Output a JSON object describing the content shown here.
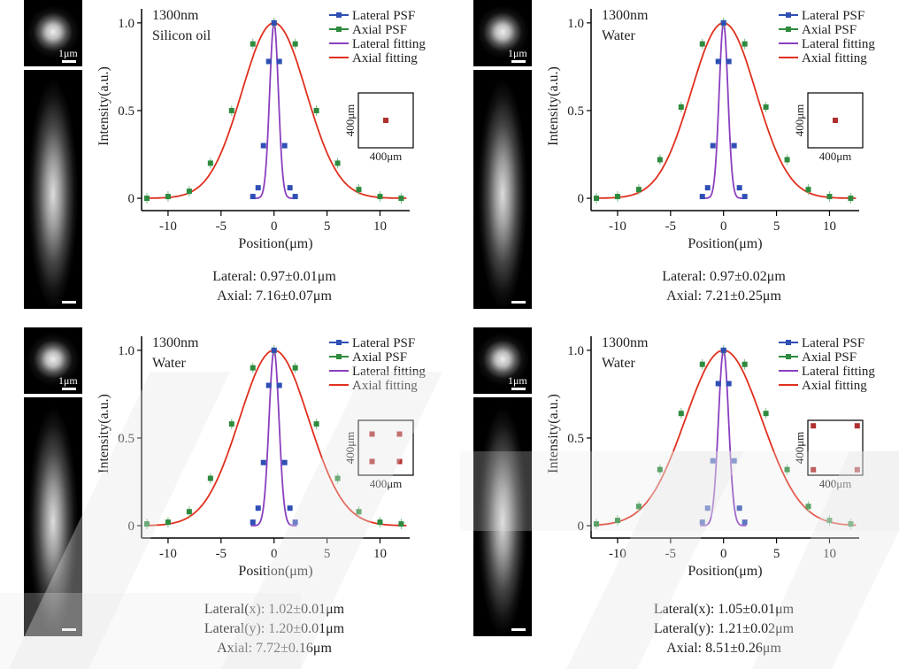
{
  "panels": [
    {
      "id": "a",
      "wavelength": "1300nm",
      "medium": "Silicon oil",
      "scale_label": "1μm",
      "inset_label": "400μm",
      "inset_points": [
        [
          0.5,
          0.5
        ]
      ],
      "legend": [
        "Lateral PSF",
        "Axial PSF",
        "Lateral fitting",
        "Axial fitting"
      ],
      "ylabel": "Intensity(a.u.)",
      "xlabel": "Position(μm)",
      "xticks": [
        "-10",
        "-5",
        "0",
        "5",
        "10"
      ],
      "yticks": [
        "0",
        "0.5",
        "1.0"
      ],
      "captions": [
        "Lateral: 0.97±0.01μm",
        "Axial: 7.16±0.07μm"
      ],
      "lateral_fwhm": 0.97,
      "axial_fwhm": 7.16
    },
    {
      "id": "b",
      "wavelength": "1300nm",
      "medium": "Water",
      "scale_label": "1μm",
      "inset_label": "400μm",
      "inset_points": [
        [
          0.5,
          0.5
        ]
      ],
      "legend": [
        "Lateral PSF",
        "Axial PSF",
        "Lateral fitting",
        "Axial fitting"
      ],
      "ylabel": "Intensity(a.u.)",
      "xlabel": "Position(μm)",
      "xticks": [
        "-10",
        "-5",
        "0",
        "5",
        "10"
      ],
      "yticks": [
        "0",
        "0.5",
        "1.0"
      ],
      "captions": [
        "Lateral: 0.97±0.02μm",
        "Axial: 7.21±0.25μm"
      ],
      "lateral_fwhm": 0.97,
      "axial_fwhm": 7.21
    },
    {
      "id": "c",
      "wavelength": "1300nm",
      "medium": "Water",
      "scale_label": "1μm",
      "inset_label": "400μm",
      "inset_points": [
        [
          0.25,
          0.25
        ],
        [
          0.75,
          0.25
        ],
        [
          0.25,
          0.75
        ],
        [
          0.75,
          0.75
        ]
      ],
      "legend": [
        "Lateral PSF",
        "Axial PSF",
        "Lateral fitting",
        "Axial fitting"
      ],
      "ylabel": "Intensity(a.u.)",
      "xlabel": "Position(μm)",
      "xticks": [
        "-10",
        "-5",
        "0",
        "5",
        "10"
      ],
      "yticks": [
        "0",
        "0.5",
        "1.0"
      ],
      "captions": [
        "Lateral(x): 1.02±0.01μm",
        "Lateral(y): 1.20±0.01μm",
        "Axial: 7.72±0.16μm"
      ],
      "lateral_fwhm": 1.11,
      "axial_fwhm": 7.72
    },
    {
      "id": "d",
      "wavelength": "1300nm",
      "medium": "Water",
      "scale_label": "1μm",
      "inset_label": "400μm",
      "inset_points": [
        [
          0.1,
          0.1
        ],
        [
          0.9,
          0.1
        ],
        [
          0.1,
          0.9
        ],
        [
          0.9,
          0.9
        ]
      ],
      "legend": [
        "Lateral PSF",
        "Axial PSF",
        "Lateral fitting",
        "Axial fitting"
      ],
      "ylabel": "Intensity(a.u.)",
      "xlabel": "Position(μm)",
      "xticks": [
        "-10",
        "-5",
        "0",
        "5",
        "10"
      ],
      "yticks": [
        "0",
        "0.5",
        "1.0"
      ],
      "captions": [
        "Lateral(x): 1.05±0.01μm",
        "Lateral(y): 1.21±0.02μm",
        "Axial: 8.51±0.26μm"
      ],
      "lateral_fwhm": 1.13,
      "axial_fwhm": 8.51
    }
  ],
  "colors": {
    "lateral_psf": "#2f4fb5",
    "axial_psf": "#2e8b3e",
    "lateral_fit": "#8a3fbf",
    "axial_fit": "#e0301e",
    "inset_dot": "#b03030"
  },
  "chart_data": [
    {
      "type": "line",
      "title": "1300nm Silicon oil",
      "xlabel": "Position(μm)",
      "ylabel": "Intensity(a.u.)",
      "xlim": [
        -12,
        12.5
      ],
      "ylim": [
        -0.05,
        1.1
      ],
      "series": [
        {
          "name": "Lateral PSF",
          "x": [
            -2,
            -1.5,
            -1,
            -0.5,
            0,
            0.5,
            1,
            1.5,
            2
          ],
          "y": [
            0.01,
            0.06,
            0.3,
            0.78,
            1.0,
            0.78,
            0.3,
            0.06,
            0.01
          ]
        },
        {
          "name": "Axial PSF",
          "x": [
            -12,
            -10,
            -8,
            -6,
            -4,
            -2,
            0,
            2,
            4,
            6,
            8,
            10,
            12
          ],
          "y": [
            0.0,
            0.01,
            0.04,
            0.2,
            0.5,
            0.88,
            1.0,
            0.88,
            0.5,
            0.2,
            0.05,
            0.01,
            0.0
          ]
        },
        {
          "name": "Lateral fitting",
          "fwhm": 0.97
        },
        {
          "name": "Axial fitting",
          "fwhm": 7.16
        }
      ]
    },
    {
      "type": "line",
      "title": "1300nm Water",
      "xlabel": "Position(μm)",
      "ylabel": "Intensity(a.u.)",
      "xlim": [
        -12,
        12.5
      ],
      "ylim": [
        -0.05,
        1.1
      ],
      "series": [
        {
          "name": "Lateral PSF",
          "x": [
            -2,
            -1.5,
            -1,
            -0.5,
            0,
            0.5,
            1,
            1.5,
            2
          ],
          "y": [
            0.01,
            0.06,
            0.3,
            0.78,
            1.0,
            0.78,
            0.3,
            0.06,
            0.01
          ]
        },
        {
          "name": "Axial PSF",
          "x": [
            -12,
            -10,
            -8,
            -6,
            -4,
            -2,
            0,
            2,
            4,
            6,
            8,
            10,
            12
          ],
          "y": [
            0.0,
            0.01,
            0.05,
            0.22,
            0.52,
            0.88,
            1.0,
            0.88,
            0.52,
            0.22,
            0.05,
            0.01,
            0.0
          ]
        },
        {
          "name": "Lateral fitting",
          "fwhm": 0.97
        },
        {
          "name": "Axial fitting",
          "fwhm": 7.21
        }
      ]
    },
    {
      "type": "line",
      "title": "1300nm Water",
      "xlabel": "Position(μm)",
      "ylabel": "Intensity(a.u.)",
      "xlim": [
        -12,
        12.5
      ],
      "ylim": [
        -0.05,
        1.1
      ],
      "series": [
        {
          "name": "Lateral PSF",
          "x": [
            -2,
            -1.5,
            -1,
            -0.5,
            0,
            0.5,
            1,
            1.5,
            2
          ],
          "y": [
            0.02,
            0.1,
            0.36,
            0.8,
            1.0,
            0.8,
            0.36,
            0.1,
            0.02
          ]
        },
        {
          "name": "Axial PSF",
          "x": [
            -12,
            -10,
            -8,
            -6,
            -4,
            -2,
            0,
            2,
            4,
            6,
            8,
            10,
            12
          ],
          "y": [
            0.01,
            0.02,
            0.08,
            0.27,
            0.58,
            0.9,
            1.0,
            0.9,
            0.58,
            0.27,
            0.08,
            0.02,
            0.01
          ]
        },
        {
          "name": "Lateral fitting",
          "fwhm": 1.11
        },
        {
          "name": "Axial fitting",
          "fwhm": 7.72
        }
      ]
    },
    {
      "type": "line",
      "title": "1300nm Water",
      "xlabel": "Position(μm)",
      "ylabel": "Intensity(a.u.)",
      "xlim": [
        -12,
        12.5
      ],
      "ylim": [
        -0.05,
        1.1
      ],
      "series": [
        {
          "name": "Lateral PSF",
          "x": [
            -2,
            -1.5,
            -1,
            -0.5,
            0,
            0.5,
            1,
            1.5,
            2
          ],
          "y": [
            0.02,
            0.1,
            0.37,
            0.81,
            1.0,
            0.81,
            0.37,
            0.1,
            0.02
          ]
        },
        {
          "name": "Axial PSF",
          "x": [
            -12,
            -10,
            -8,
            -6,
            -4,
            -2,
            0,
            2,
            4,
            6,
            8,
            10,
            12
          ],
          "y": [
            0.01,
            0.03,
            0.11,
            0.32,
            0.64,
            0.92,
            1.0,
            0.92,
            0.64,
            0.32,
            0.11,
            0.03,
            0.01
          ]
        },
        {
          "name": "Lateral fitting",
          "fwhm": 1.13
        },
        {
          "name": "Axial fitting",
          "fwhm": 8.51
        }
      ]
    }
  ]
}
